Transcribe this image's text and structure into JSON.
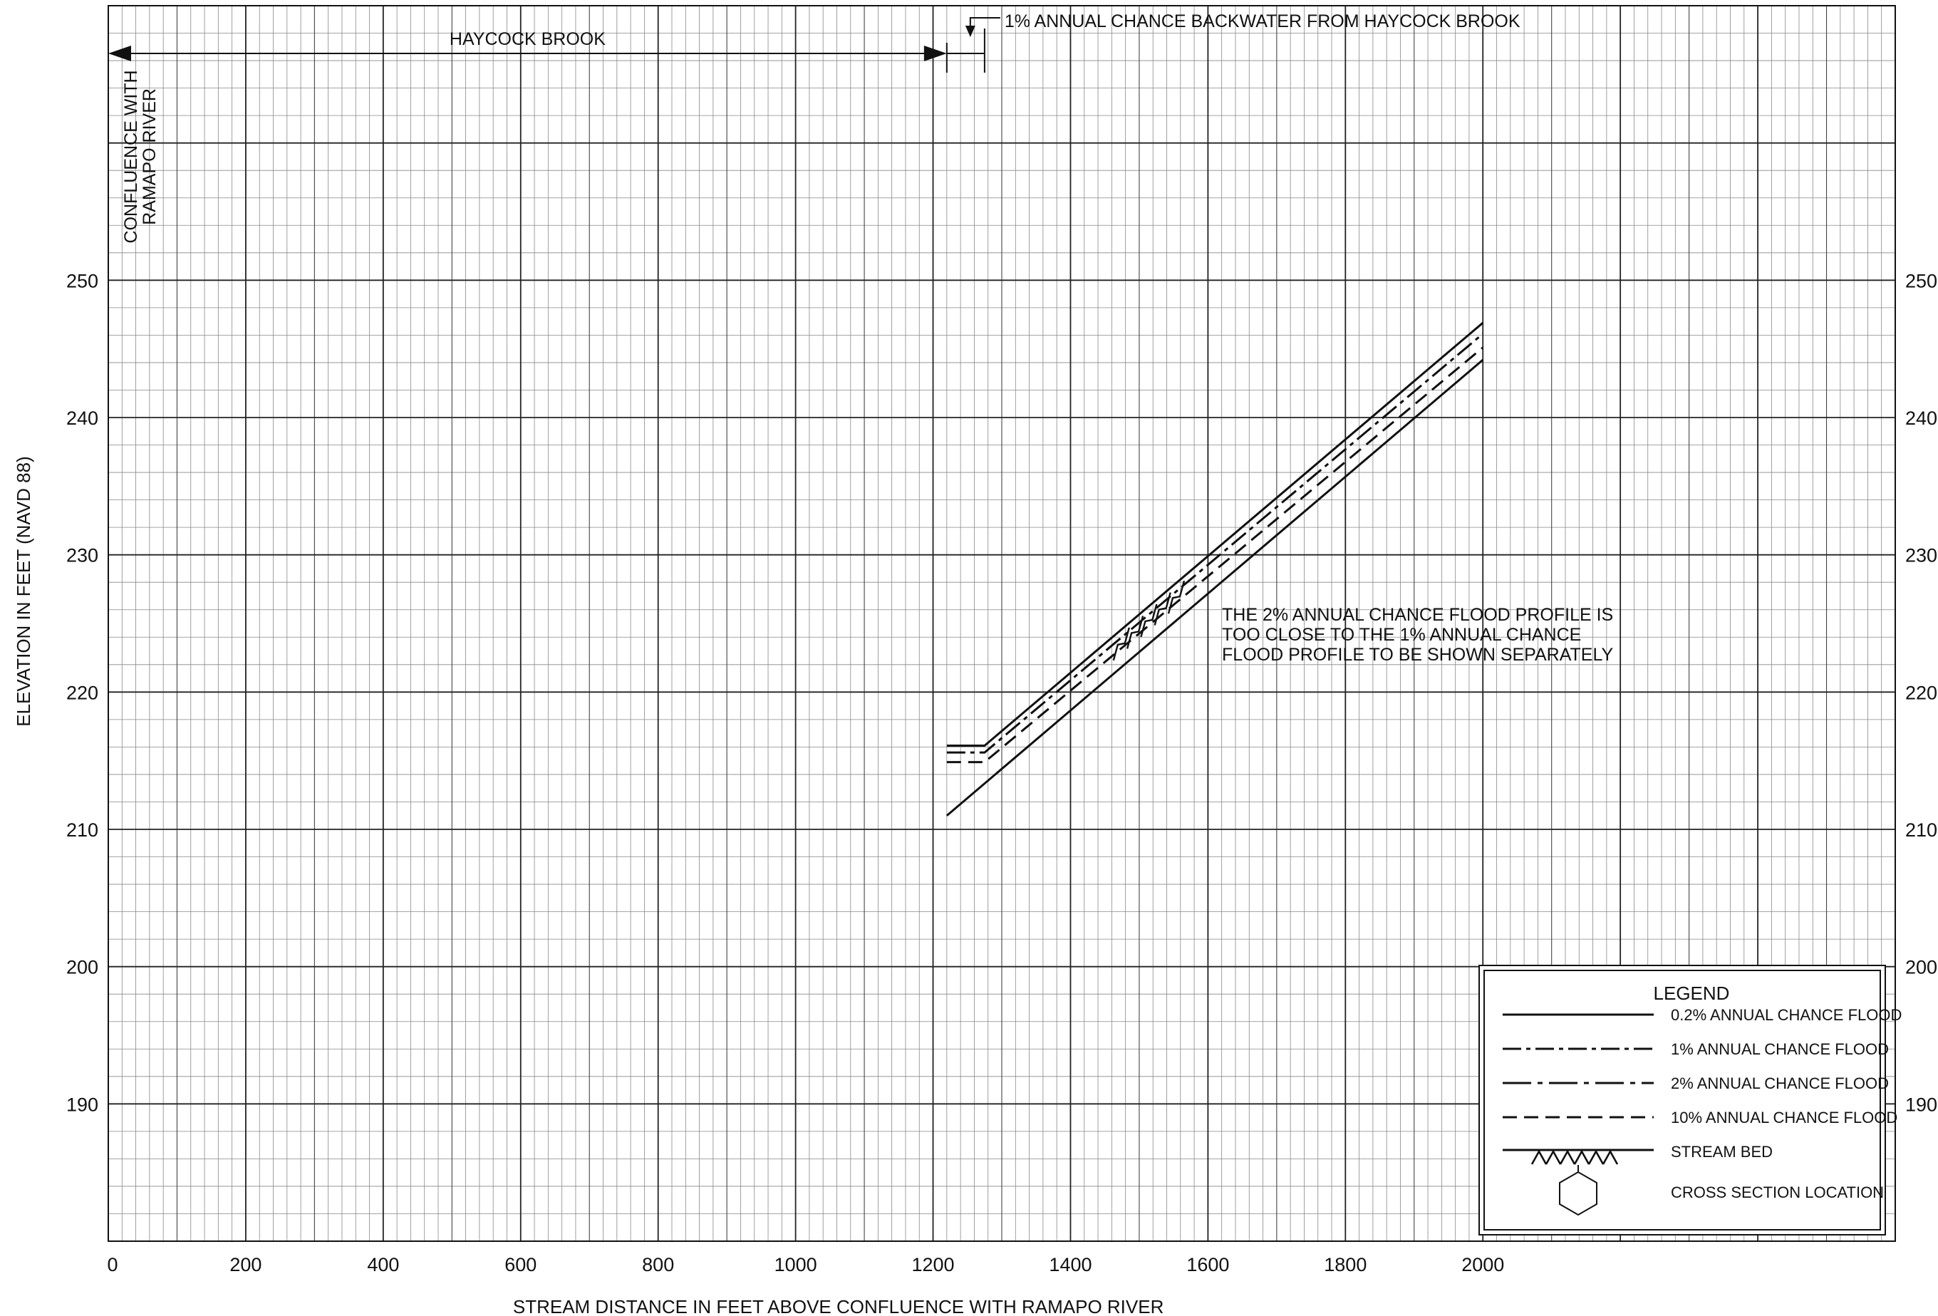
{
  "chart_data": {
    "type": "line",
    "title": "",
    "xlabel": "STREAM DISTANCE IN FEET ABOVE CONFLUENCE WITH RAMAPO RIVER",
    "ylabel": "ELEVATION IN FEET (NAVD 88)",
    "xlim": [
      0,
      2600
    ],
    "ylim": [
      180,
      270
    ],
    "x_ticks": [
      0,
      200,
      400,
      600,
      800,
      1000,
      1200,
      1400,
      1600,
      1800,
      2000
    ],
    "y_ticks": [
      190,
      200,
      210,
      220,
      230,
      240,
      250
    ],
    "grid": true,
    "legend_position": "bottom-right",
    "series": [
      {
        "name": "0.2% ANNUAL CHANCE FLOOD",
        "style": "solid",
        "x": [
          1220,
          1275,
          2000
        ],
        "y": [
          216.1,
          216.1,
          246.9
        ]
      },
      {
        "name": "1% ANNUAL CHANCE FLOOD",
        "style": "dashdot",
        "x": [
          1220,
          1275,
          2000
        ],
        "y": [
          215.6,
          215.6,
          246.1
        ]
      },
      {
        "name": "10% ANNUAL CHANCE FLOOD",
        "style": "dashed",
        "x": [
          1220,
          1275,
          2000
        ],
        "y": [
          214.9,
          214.9,
          245.1
        ]
      },
      {
        "name": "STREAM BED",
        "style": "bed",
        "x": [
          1220,
          2000
        ],
        "y": [
          211.0,
          244.2
        ]
      }
    ],
    "annotations": {
      "reach_label": "HAYCOCK BROOK",
      "reach_x": [
        0,
        1220
      ],
      "backwater_label": "1% ANNUAL CHANCE BACKWATER FROM HAYCOCK BROOK",
      "backwater_x": [
        1220,
        1275
      ],
      "confluence_label": [
        "CONFLUENCE WITH",
        "RAMAPO RIVER"
      ],
      "note_lines": [
        "THE 2% ANNUAL CHANCE FLOOD PROFILE IS",
        "TOO CLOSE TO THE 1% ANNUAL CHANCE",
        "FLOOD PROFILE TO BE SHOWN SEPARATELY"
      ],
      "note_anchor": [
        1610,
        225
      ]
    },
    "legend": {
      "title": "LEGEND",
      "items": [
        {
          "label": "0.2% ANNUAL CHANCE FLOOD",
          "style": "solid"
        },
        {
          "label": "1% ANNUAL CHANCE FLOOD",
          "style": "dashdot"
        },
        {
          "label": "2% ANNUAL CHANCE FLOOD",
          "style": "longdashdot"
        },
        {
          "label": "10% ANNUAL CHANCE FLOOD",
          "style": "dashed"
        },
        {
          "label": "STREAM BED",
          "style": "bed"
        },
        {
          "label": "CROSS SECTION LOCATION",
          "style": "hexagon"
        }
      ]
    }
  }
}
